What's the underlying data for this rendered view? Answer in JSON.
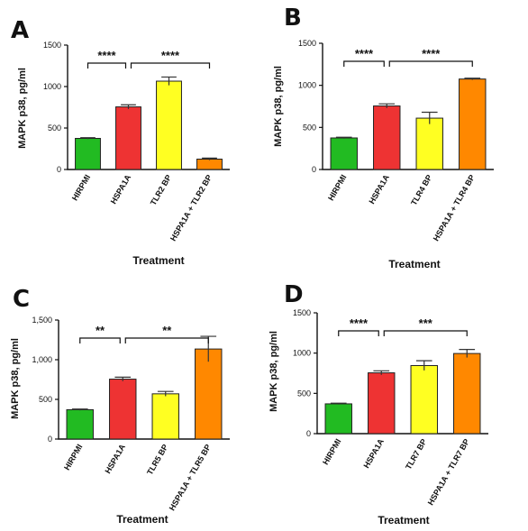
{
  "panels": [
    {
      "letter": "A",
      "chart_data": {
        "type": "bar",
        "categories": [
          "HIRPMI",
          "HSPA1A",
          "TLR2 BP",
          "HSPA1A + TLR2 BP"
        ],
        "values": [
          375,
          755,
          1065,
          125
        ],
        "errors": [
          8,
          25,
          50,
          12
        ],
        "colors": [
          "#22bb22",
          "#ee3333",
          "#ffff22",
          "#ff8800"
        ],
        "ylabel": "MAPK p38, pg/ml",
        "xlabel": "Treatment",
        "ylim": [
          0,
          1500
        ],
        "yticks": [
          "0",
          "500",
          "1000",
          "1500"
        ],
        "significance": [
          {
            "from": 0,
            "to": 1,
            "label": "****"
          },
          {
            "from": 1,
            "to": 3,
            "label": "****"
          }
        ]
      }
    },
    {
      "letter": "B",
      "chart_data": {
        "type": "bar",
        "categories": [
          "HIRPMI",
          "HSPA1A",
          "TLR4 BP",
          "HSPA1A + TLR4 BP"
        ],
        "values": [
          375,
          755,
          610,
          1075
        ],
        "errors": [
          8,
          25,
          70,
          10
        ],
        "colors": [
          "#22bb22",
          "#ee3333",
          "#ffff22",
          "#ff8800"
        ],
        "ylabel": "MAPK p38, pg/ml",
        "xlabel": "Treatment",
        "ylim": [
          0,
          1500
        ],
        "yticks": [
          "0",
          "500",
          "1000",
          "1500"
        ],
        "significance": [
          {
            "from": 0,
            "to": 1,
            "label": "****"
          },
          {
            "from": 1,
            "to": 3,
            "label": "****"
          }
        ]
      }
    },
    {
      "letter": "C",
      "chart_data": {
        "type": "bar",
        "categories": [
          "HIRPMI",
          "HSPA1A",
          "TLR5 BP",
          "HSPA1A + TLR5 BP"
        ],
        "values": [
          370,
          755,
          570,
          1135
        ],
        "errors": [
          8,
          25,
          30,
          160
        ],
        "colors": [
          "#22bb22",
          "#ee3333",
          "#ffff22",
          "#ff8800"
        ],
        "ylabel": "MAPK p38, pg/ml",
        "xlabel": "Treatment",
        "ylim": [
          0,
          1500
        ],
        "yticks": [
          "0",
          "500",
          "1,000",
          "1,500"
        ],
        "significance": [
          {
            "from": 0,
            "to": 1,
            "label": "**"
          },
          {
            "from": 1,
            "to": 3,
            "label": "**"
          }
        ]
      }
    },
    {
      "letter": "D",
      "chart_data": {
        "type": "bar",
        "categories": [
          "HIRPMI",
          "HSPA1A",
          "TLR7 BP",
          "HSPA1A + TLR7 BP"
        ],
        "values": [
          370,
          755,
          845,
          995
        ],
        "errors": [
          8,
          25,
          60,
          50
        ],
        "colors": [
          "#22bb22",
          "#ee3333",
          "#ffff22",
          "#ff8800"
        ],
        "ylabel": "MAPK p38, pg/ml",
        "xlabel": "Treatment",
        "ylim": [
          0,
          1500
        ],
        "yticks": [
          "0",
          "500",
          "1000",
          "1500"
        ],
        "significance": [
          {
            "from": 0,
            "to": 1,
            "label": "****"
          },
          {
            "from": 1,
            "to": 3,
            "label": "***"
          }
        ]
      }
    }
  ]
}
